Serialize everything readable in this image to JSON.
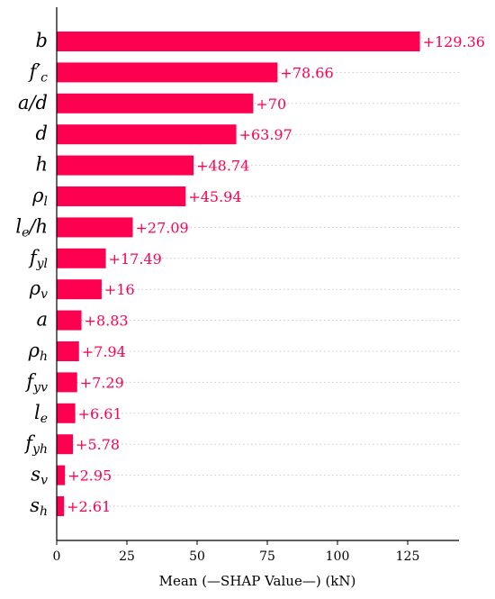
{
  "chart_data": {
    "type": "bar",
    "orientation": "horizontal",
    "categories": [
      "b",
      "f′c",
      "a/d",
      "d",
      "h",
      "ρl",
      "le/h",
      "fyl",
      "ρv",
      "a",
      "ρh",
      "fyv",
      "le",
      "fyh",
      "sv",
      "sh"
    ],
    "category_parts": [
      [
        "b",
        ""
      ],
      [
        "f′",
        "c"
      ],
      [
        "a/d",
        ""
      ],
      [
        "d",
        ""
      ],
      [
        "h",
        ""
      ],
      [
        "ρ",
        "l"
      ],
      [
        "l",
        "e",
        "/h"
      ],
      [
        "f",
        "yl"
      ],
      [
        "ρ",
        "v"
      ],
      [
        "a",
        ""
      ],
      [
        "ρ",
        "h"
      ],
      [
        "f",
        "yv"
      ],
      [
        "l",
        "e"
      ],
      [
        "f",
        "yh"
      ],
      [
        "s",
        "v"
      ],
      [
        "s",
        "h"
      ]
    ],
    "values": [
      129.36,
      78.66,
      70,
      63.97,
      48.74,
      45.94,
      27.09,
      17.49,
      16,
      8.83,
      7.94,
      7.29,
      6.61,
      5.78,
      2.95,
      2.61
    ],
    "value_labels": [
      "+129.36",
      "+78.66",
      "+70",
      "+63.97",
      "+48.74",
      "+45.94",
      "+27.09",
      "+17.49",
      "+16",
      "+8.83",
      "+7.94",
      "+7.29",
      "+6.61",
      "+5.78",
      "+2.95",
      "+2.61"
    ],
    "xlabel": "Mean (—SHAP Value—) (kN)",
    "ylabel": "",
    "title": "",
    "xlim": [
      0,
      143
    ],
    "xticks": [
      0,
      25,
      50,
      75,
      100,
      125
    ],
    "grid": "dotted horizontal row lines",
    "bar_color": "#ff0051",
    "label_color": "#ff0051"
  }
}
